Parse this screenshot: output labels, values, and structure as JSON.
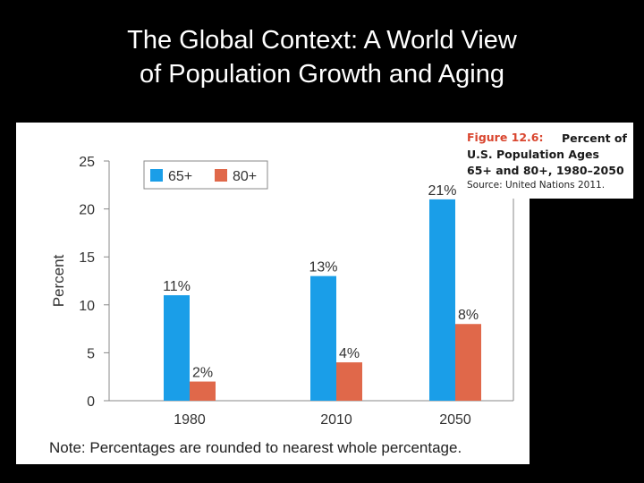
{
  "slide": {
    "title_line1": "The Global Context: A World View",
    "title_line2": "of Population Growth and Aging"
  },
  "caption": {
    "figure_label": "Figure 12.6:",
    "title": "Percent of U.S. Population Ages 65+ and 80+, 1980–2050",
    "source": "Source: United Nations 2011."
  },
  "note": "Note: Percentages are rounded to nearest whole percentage.",
  "colors": {
    "series_65": "#1a9ee8",
    "series_80": "#e0684a",
    "axis": "#888888",
    "text": "#333333"
  },
  "chart_data": {
    "type": "bar",
    "title": "Percent of U.S. Population Ages 65+ and 80+, 1980–2050",
    "xlabel": "",
    "ylabel": "Percent",
    "ylim": [
      0,
      25
    ],
    "yticks": [
      0,
      5,
      10,
      15,
      20,
      25
    ],
    "categories": [
      "1980",
      "2010",
      "2050"
    ],
    "series": [
      {
        "name": "65+",
        "values": [
          11,
          13,
          21
        ],
        "labels": [
          "11%",
          "13%",
          "21%"
        ]
      },
      {
        "name": "80+",
        "values": [
          2,
          4,
          8
        ],
        "labels": [
          "2%",
          "4%",
          "8%"
        ]
      }
    ],
    "legend_position": "top-left"
  }
}
